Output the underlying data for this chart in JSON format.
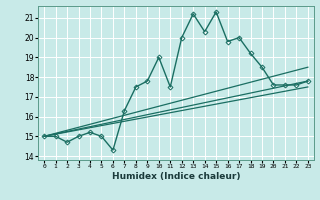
{
  "xlabel": "Humidex (Indice chaleur)",
  "ylabel": "",
  "bg_color": "#c8eae8",
  "grid_color": "#ffffff",
  "line_color": "#1a6e62",
  "xlim": [
    -0.5,
    23.5
  ],
  "ylim": [
    13.8,
    21.6
  ],
  "yticks": [
    14,
    15,
    16,
    17,
    18,
    19,
    20,
    21
  ],
  "xticks": [
    0,
    1,
    2,
    3,
    4,
    5,
    6,
    7,
    8,
    9,
    10,
    11,
    12,
    13,
    14,
    15,
    16,
    17,
    18,
    19,
    20,
    21,
    22,
    23
  ],
  "series": [
    {
      "x": [
        0,
        1,
        2,
        3,
        4,
        5,
        6,
        7,
        8,
        9,
        10,
        11,
        12,
        13,
        14,
        15,
        16,
        17,
        18,
        19,
        20,
        21,
        22,
        23
      ],
      "y": [
        15.0,
        15.0,
        14.7,
        15.0,
        15.2,
        15.0,
        14.3,
        16.3,
        17.5,
        17.8,
        19.0,
        17.5,
        20.0,
        21.2,
        20.3,
        21.3,
        19.8,
        20.0,
        19.2,
        18.5,
        17.6,
        17.6,
        17.6,
        17.8
      ],
      "marker": "D",
      "markersize": 2.5,
      "linewidth": 1.0
    },
    {
      "x": [
        0,
        23
      ],
      "y": [
        15.0,
        18.5
      ],
      "marker": null,
      "linewidth": 0.9
    },
    {
      "x": [
        0,
        23
      ],
      "y": [
        15.0,
        17.8
      ],
      "marker": null,
      "linewidth": 0.9
    },
    {
      "x": [
        0,
        23
      ],
      "y": [
        15.0,
        17.5
      ],
      "marker": null,
      "linewidth": 0.9
    }
  ]
}
